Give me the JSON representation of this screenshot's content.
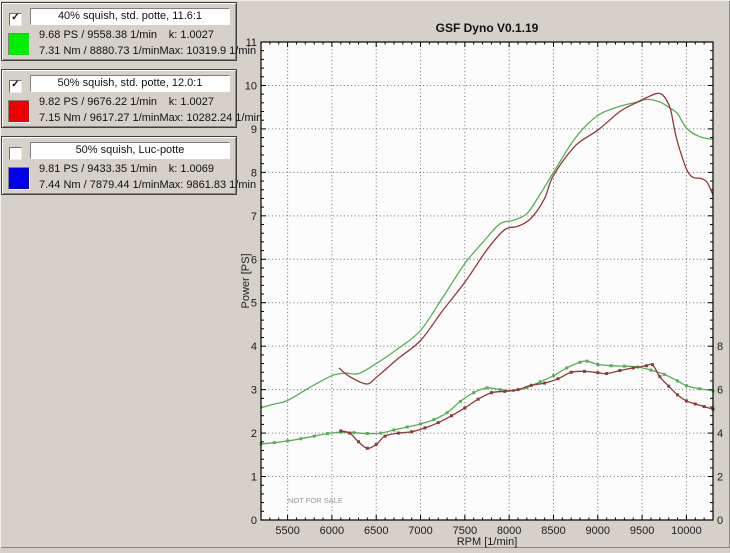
{
  "legend": {
    "entries": [
      {
        "checked": true,
        "check_glyph": "✓",
        "title": "40% squish, std. potte, 11.6:1",
        "color": "#00ee00",
        "ps_line": "9.68 PS / 9558.38 1/min",
        "k_line": "k: 1.0027",
        "nm_line": "7.31 Nm / 8880.73 1/min",
        "max_line": "Max: 10319.9 1/min"
      },
      {
        "checked": true,
        "check_glyph": "✓",
        "title": "50% squish, std. potte, 12.0:1",
        "color": "#ee0000",
        "ps_line": "9.82 PS / 9676.22 1/min",
        "k_line": "k: 1.0027",
        "nm_line": "7.15 Nm / 9617.27 1/min",
        "max_line": "Max: 10282.24 1/min"
      },
      {
        "checked": false,
        "check_glyph": "",
        "title": "50% squish, Luc-potte",
        "color": "#0000ee",
        "ps_line": "9.81 PS / 9433.35 1/min",
        "k_line": "k: 1.0069",
        "nm_line": "7.44 Nm / 7879.44 1/min",
        "max_line": "Max: 9861.83 1/min"
      }
    ]
  },
  "chart_data": {
    "type": "line",
    "title": "GSF Dyno V0.1.19",
    "xlabel": "RPM [1/min]",
    "ylabel": "Power [PS]",
    "watermark": "NOT FOR SALE",
    "grid": "dotted",
    "xlim": [
      5200,
      10300
    ],
    "ylim_left": [
      0,
      11
    ],
    "ylim_right": [
      0,
      22
    ],
    "x_ticks": [
      5500,
      6000,
      6500,
      7000,
      7500,
      8000,
      8500,
      9000,
      9500,
      10000
    ],
    "y_ticks_left": [
      0,
      1,
      2,
      3,
      4,
      5,
      6,
      7,
      8,
      9,
      10,
      11
    ],
    "y_ticks_right_labeled": [
      0,
      2,
      4,
      6,
      8
    ],
    "series": [
      {
        "id": "power-40-squish",
        "name": "40% squish, std. potte, 11.6:1 — Power [PS]",
        "axis": "left",
        "color": "#58ae58",
        "marker": "none",
        "visible": true,
        "points": [
          [
            5200,
            2.58
          ],
          [
            5350,
            2.67
          ],
          [
            5500,
            2.75
          ],
          [
            5750,
            3.05
          ],
          [
            6000,
            3.32
          ],
          [
            6150,
            3.38
          ],
          [
            6300,
            3.37
          ],
          [
            6500,
            3.6
          ],
          [
            6750,
            3.95
          ],
          [
            7000,
            4.36
          ],
          [
            7250,
            5.12
          ],
          [
            7500,
            5.9
          ],
          [
            7750,
            6.5
          ],
          [
            7900,
            6.82
          ],
          [
            8050,
            6.9
          ],
          [
            8200,
            7.05
          ],
          [
            8350,
            7.5
          ],
          [
            8500,
            8.0
          ],
          [
            8750,
            8.8
          ],
          [
            9000,
            9.31
          ],
          [
            9250,
            9.52
          ],
          [
            9450,
            9.62
          ],
          [
            9558,
            9.68
          ],
          [
            9700,
            9.62
          ],
          [
            9800,
            9.5
          ],
          [
            9900,
            9.35
          ],
          [
            10000,
            9.02
          ],
          [
            10150,
            8.82
          ],
          [
            10300,
            8.76
          ]
        ]
      },
      {
        "id": "power-50-squish",
        "name": "50% squish, std. potte, 12.0:1 — Power [PS]",
        "axis": "left",
        "color": "#8d3a3c",
        "marker": "none",
        "visible": true,
        "points": [
          [
            6080,
            3.5
          ],
          [
            6200,
            3.3
          ],
          [
            6390,
            3.13
          ],
          [
            6500,
            3.28
          ],
          [
            6750,
            3.72
          ],
          [
            7000,
            4.13
          ],
          [
            7250,
            4.82
          ],
          [
            7500,
            5.47
          ],
          [
            7750,
            6.22
          ],
          [
            7950,
            6.68
          ],
          [
            8100,
            6.76
          ],
          [
            8250,
            6.95
          ],
          [
            8400,
            7.4
          ],
          [
            8500,
            7.93
          ],
          [
            8750,
            8.62
          ],
          [
            9000,
            8.97
          ],
          [
            9250,
            9.4
          ],
          [
            9450,
            9.62
          ],
          [
            9550,
            9.72
          ],
          [
            9676,
            9.82
          ],
          [
            9750,
            9.74
          ],
          [
            9820,
            9.45
          ],
          [
            9880,
            8.85
          ],
          [
            9960,
            8.3
          ],
          [
            10020,
            8.0
          ],
          [
            10080,
            7.88
          ],
          [
            10160,
            7.86
          ],
          [
            10230,
            7.78
          ],
          [
            10300,
            7.48
          ]
        ]
      },
      {
        "id": "torque-40-squish",
        "name": "40% squish, std. potte, 11.6:1 — Torque [Nm]",
        "axis": "right",
        "color": "#58ae58",
        "marker": "square",
        "visible": true,
        "points": [
          [
            5200,
            3.5
          ],
          [
            5350,
            3.56
          ],
          [
            5500,
            3.64
          ],
          [
            5650,
            3.74
          ],
          [
            5800,
            3.86
          ],
          [
            5950,
            3.98
          ],
          [
            6100,
            4.04
          ],
          [
            6250,
            4.02
          ],
          [
            6400,
            3.98
          ],
          [
            6550,
            4.0
          ],
          [
            6700,
            4.14
          ],
          [
            6850,
            4.28
          ],
          [
            7000,
            4.42
          ],
          [
            7150,
            4.62
          ],
          [
            7300,
            4.94
          ],
          [
            7450,
            5.46
          ],
          [
            7600,
            5.86
          ],
          [
            7750,
            6.08
          ],
          [
            7900,
            6.0
          ],
          [
            8050,
            5.96
          ],
          [
            8200,
            6.1
          ],
          [
            8350,
            6.36
          ],
          [
            8500,
            6.64
          ],
          [
            8650,
            7.0
          ],
          [
            8800,
            7.26
          ],
          [
            8880,
            7.31
          ],
          [
            9000,
            7.16
          ],
          [
            9150,
            7.1
          ],
          [
            9300,
            7.08
          ],
          [
            9450,
            7.04
          ],
          [
            9600,
            6.9
          ],
          [
            9750,
            6.7
          ],
          [
            9900,
            6.4
          ],
          [
            10000,
            6.18
          ],
          [
            10150,
            6.04
          ],
          [
            10300,
            5.94
          ]
        ]
      },
      {
        "id": "torque-50-squish",
        "name": "50% squish, std. potte, 12.0:1 — Torque [Nm]",
        "axis": "right",
        "color": "#8d3a3c",
        "marker": "square",
        "visible": true,
        "points": [
          [
            6100,
            4.1
          ],
          [
            6200,
            4.0
          ],
          [
            6300,
            3.6
          ],
          [
            6400,
            3.3
          ],
          [
            6500,
            3.48
          ],
          [
            6600,
            3.86
          ],
          [
            6750,
            4.0
          ],
          [
            6900,
            4.06
          ],
          [
            7050,
            4.24
          ],
          [
            7200,
            4.48
          ],
          [
            7350,
            4.8
          ],
          [
            7500,
            5.16
          ],
          [
            7650,
            5.56
          ],
          [
            7800,
            5.86
          ],
          [
            7950,
            5.92
          ],
          [
            8100,
            6.0
          ],
          [
            8250,
            6.2
          ],
          [
            8400,
            6.3
          ],
          [
            8550,
            6.5
          ],
          [
            8700,
            6.8
          ],
          [
            8850,
            6.84
          ],
          [
            9000,
            6.78
          ],
          [
            9100,
            6.74
          ],
          [
            9250,
            6.88
          ],
          [
            9400,
            7.0
          ],
          [
            9550,
            7.1
          ],
          [
            9617,
            7.15
          ],
          [
            9700,
            6.6
          ],
          [
            9800,
            6.16
          ],
          [
            9900,
            5.76
          ],
          [
            10000,
            5.48
          ],
          [
            10100,
            5.34
          ],
          [
            10200,
            5.22
          ],
          [
            10300,
            5.1
          ]
        ]
      }
    ]
  }
}
